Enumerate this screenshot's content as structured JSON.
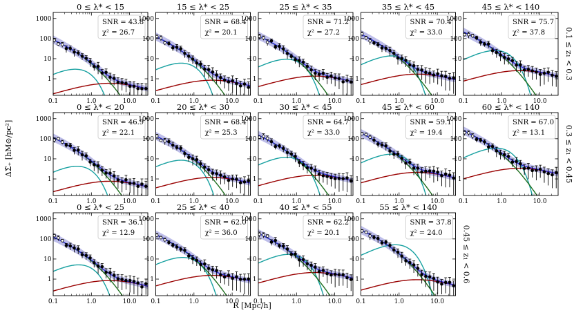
{
  "figure": {
    "xlabel": "R [Mpc/h]",
    "ylabel": "ΔΣ̃₊ [hM⊙/pc²]",
    "colors": {
      "total_model": "#2b2bd6",
      "model_band": "#b3b3e6",
      "one_halo": "#1f6e1f",
      "miscentered": "#16a0a0",
      "two_halo": "#990000",
      "data": "#000000"
    }
  },
  "rows": [
    {
      "label": "0.1 ≤ z₁ < 0.3"
    },
    {
      "label": "0.3 ≤ z₁ < 0.45"
    },
    {
      "label": "0.45 ≤ z₁ < 0.6"
    }
  ],
  "chart_data": {
    "type": "scatter",
    "x_scale": "log",
    "y_scale": "log",
    "xlim": [
      0.1,
      30
    ],
    "ylim": [
      0.15,
      2000
    ],
    "xticks": [
      {
        "v": 0.1,
        "label": "0.1"
      },
      {
        "v": 1,
        "label": "1.0"
      },
      {
        "v": 10,
        "label": "10.0"
      }
    ],
    "yticks": [
      {
        "v": 1,
        "label": "1"
      },
      {
        "v": 10,
        "label": "10"
      },
      {
        "v": 100,
        "label": "100"
      },
      {
        "v": 1000,
        "label": "1000"
      }
    ],
    "panels": [
      {
        "row": 0,
        "col": 0,
        "title": "0 ≤ λ* < 15",
        "snr": "SNR = 43.8",
        "chi2": "χ² = 26.7",
        "amp": 70,
        "scale": 1.0,
        "mis_amp": 3.5,
        "mis_peak": 0.45,
        "two_amp": 0.7
      },
      {
        "row": 0,
        "col": 1,
        "title": "15 ≤ λ* < 25",
        "snr": "SNR = 68.4",
        "chi2": "χ² = 20.1",
        "amp": 100,
        "scale": 1.0,
        "mis_amp": 7,
        "mis_peak": 0.55,
        "two_amp": 1.0
      },
      {
        "row": 0,
        "col": 2,
        "title": "25 ≤ λ* < 35",
        "snr": "SNR = 71.2",
        "chi2": "χ² = 27.2",
        "amp": 110,
        "scale": 1.0,
        "mis_amp": 11,
        "mis_peak": 0.65,
        "two_amp": 1.6
      },
      {
        "row": 0,
        "col": 3,
        "title": "35 ≤ λ* < 45",
        "snr": "SNR = 70.4",
        "chi2": "χ² = 33.0",
        "amp": 130,
        "scale": 1.0,
        "mis_amp": 16,
        "mis_peak": 0.75,
        "two_amp": 2.0
      },
      {
        "row": 0,
        "col": 4,
        "title": "45 ≤ λ* < 140",
        "snr": "SNR = 75.7",
        "chi2": "χ² = 37.8",
        "amp": 170,
        "scale": 1.0,
        "mis_amp": 30,
        "mis_peak": 0.8,
        "two_amp": 3.0
      },
      {
        "row": 1,
        "col": 0,
        "title": "0 ≤ λ* < 20",
        "snr": "SNR = 46.9",
        "chi2": "χ² = 22.1",
        "amp": 90,
        "scale": 1.0,
        "mis_amp": 5,
        "mis_peak": 0.5,
        "two_amp": 0.9
      },
      {
        "row": 1,
        "col": 1,
        "title": "20 ≤ λ* < 30",
        "snr": "SNR = 68.4",
        "chi2": "χ² = 25.3",
        "amp": 110,
        "scale": 1.0,
        "mis_amp": 10,
        "mis_peak": 0.55,
        "two_amp": 1.4
      },
      {
        "row": 1,
        "col": 2,
        "title": "30 ≤ λ* < 45",
        "snr": "SNR = 64.7",
        "chi2": "χ² = 33.0",
        "amp": 120,
        "scale": 1.0,
        "mis_amp": 14,
        "mis_peak": 0.65,
        "two_amp": 1.8
      },
      {
        "row": 1,
        "col": 3,
        "title": "45 ≤ λ* < 60",
        "snr": "SNR = 59.1",
        "chi2": "χ² = 19.4",
        "amp": 150,
        "scale": 1.0,
        "mis_amp": 20,
        "mis_peak": 0.75,
        "two_amp": 2.5
      },
      {
        "row": 1,
        "col": 4,
        "title": "60 ≤ λ* < 140",
        "snr": "SNR = 67.0",
        "chi2": "χ² = 13.1",
        "amp": 200,
        "scale": 1.0,
        "mis_amp": 40,
        "mis_peak": 0.85,
        "two_amp": 4.0
      },
      {
        "row": 2,
        "col": 0,
        "title": "0 ≤ λ* < 25",
        "snr": "SNR = 36.1",
        "chi2": "χ² = 12.9",
        "amp": 100,
        "scale": 1.0,
        "mis_amp": 6,
        "mis_peak": 0.55,
        "two_amp": 1.0
      },
      {
        "row": 2,
        "col": 1,
        "title": "25 ≤ λ* < 40",
        "snr": "SNR = 62.0",
        "chi2": "χ² = 36.0",
        "amp": 130,
        "scale": 1.0,
        "mis_amp": 14,
        "mis_peak": 0.6,
        "two_amp": 1.8
      },
      {
        "row": 2,
        "col": 2,
        "title": "40 ≤ λ* < 55",
        "snr": "SNR = 62.2",
        "chi2": "χ² = 20.1",
        "amp": 150,
        "scale": 1.0,
        "mis_amp": 20,
        "mis_peak": 0.75,
        "two_amp": 2.5
      },
      {
        "row": 2,
        "col": 3,
        "title": "55 ≤ λ* < 140",
        "snr": "SNR = 37.8",
        "chi2": "χ² = 24.0",
        "amp": 220,
        "scale": 1.0,
        "mis_amp": 60,
        "mis_peak": 0.95,
        "two_amp": 1.1
      }
    ]
  }
}
